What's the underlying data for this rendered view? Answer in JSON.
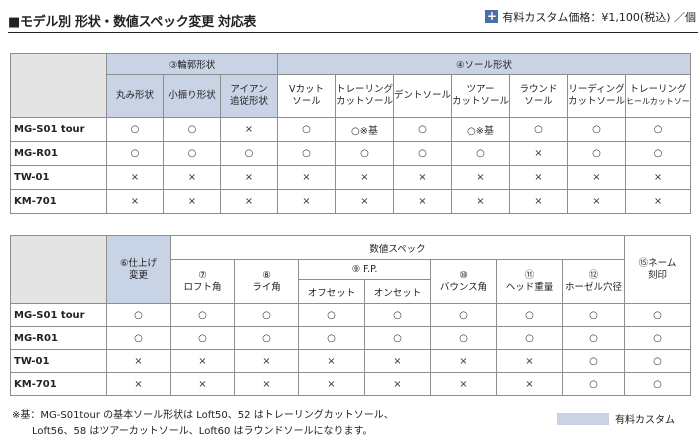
{
  "header": {
    "title": "■モデル別 形状・数値スペック変更 対応表",
    "price_note": "有料カスタム価格：¥1,100(税込) ／個",
    "plus_icon": "+"
  },
  "table1": {
    "group_headers": [
      "③輪郭形状",
      "④ソール形状"
    ],
    "columns": [
      [
        "丸み形状"
      ],
      [
        "小振り形状"
      ],
      [
        "アイアン",
        "追従形状"
      ],
      [
        "Vカット",
        "ソール"
      ],
      [
        "トレーリング",
        "カットソール"
      ],
      [
        "デントソール"
      ],
      [
        "ツアー",
        "カットソール"
      ],
      [
        "ラウンド",
        "ソール"
      ],
      [
        "リーディング",
        "カットソール"
      ],
      [
        "トレーリング",
        "ヒールカットソール"
      ]
    ],
    "rows": [
      {
        "model": "MG-S01 tour",
        "cells": [
          "○",
          "○",
          "×",
          "○",
          "○※基",
          "○",
          "○※基",
          "○",
          "○",
          "○"
        ]
      },
      {
        "model": "MG-R01",
        "cells": [
          "○",
          "○",
          "○",
          "○",
          "○",
          "○",
          "○",
          "×",
          "○",
          "○"
        ]
      },
      {
        "model": "TW-01",
        "cells": [
          "×",
          "×",
          "×",
          "×",
          "×",
          "×",
          "×",
          "×",
          "×",
          "×"
        ]
      },
      {
        "model": "KM-701",
        "cells": [
          "×",
          "×",
          "×",
          "×",
          "×",
          "×",
          "×",
          "×",
          "×",
          "×"
        ]
      }
    ]
  },
  "table2": {
    "finish_header": [
      "⑥仕上げ",
      "変更"
    ],
    "numeric_group": "数値スペック",
    "name_header": [
      "⑮ネーム",
      "刻印"
    ],
    "fp_group": "⑨ F.P.",
    "columns": [
      [
        "⑦",
        "ロフト角"
      ],
      [
        "⑧",
        "ライ角"
      ],
      [
        "オフセット"
      ],
      [
        "オンセット"
      ],
      [
        "⑩",
        "バウンス角"
      ],
      [
        "⑪",
        "ヘッド重量"
      ],
      [
        "⑫",
        "ホーゼル穴径"
      ]
    ],
    "rows": [
      {
        "model": "MG-S01 tour",
        "cells": [
          "○",
          "○",
          "○",
          "○",
          "○",
          "○",
          "○",
          "○",
          "○"
        ]
      },
      {
        "model": "MG-R01",
        "cells": [
          "○",
          "○",
          "○",
          "○",
          "○",
          "○",
          "○",
          "○",
          "○"
        ]
      },
      {
        "model": "TW-01",
        "cells": [
          "×",
          "×",
          "×",
          "×",
          "×",
          "×",
          "×",
          "○",
          "○"
        ]
      },
      {
        "model": "KM-701",
        "cells": [
          "×",
          "×",
          "×",
          "×",
          "×",
          "×",
          "×",
          "○",
          "○"
        ]
      }
    ]
  },
  "footnote": {
    "line1": "※基：MG-S01tour の基本ソール形状は Loft50、52 はトレーリングカットソール、",
    "line2": "Loft56、58 はツアーカットソール、Loft60 はラウンドソールになります。"
  },
  "legend": {
    "label": "有料カスタム",
    "color": "#c9d3e6"
  }
}
